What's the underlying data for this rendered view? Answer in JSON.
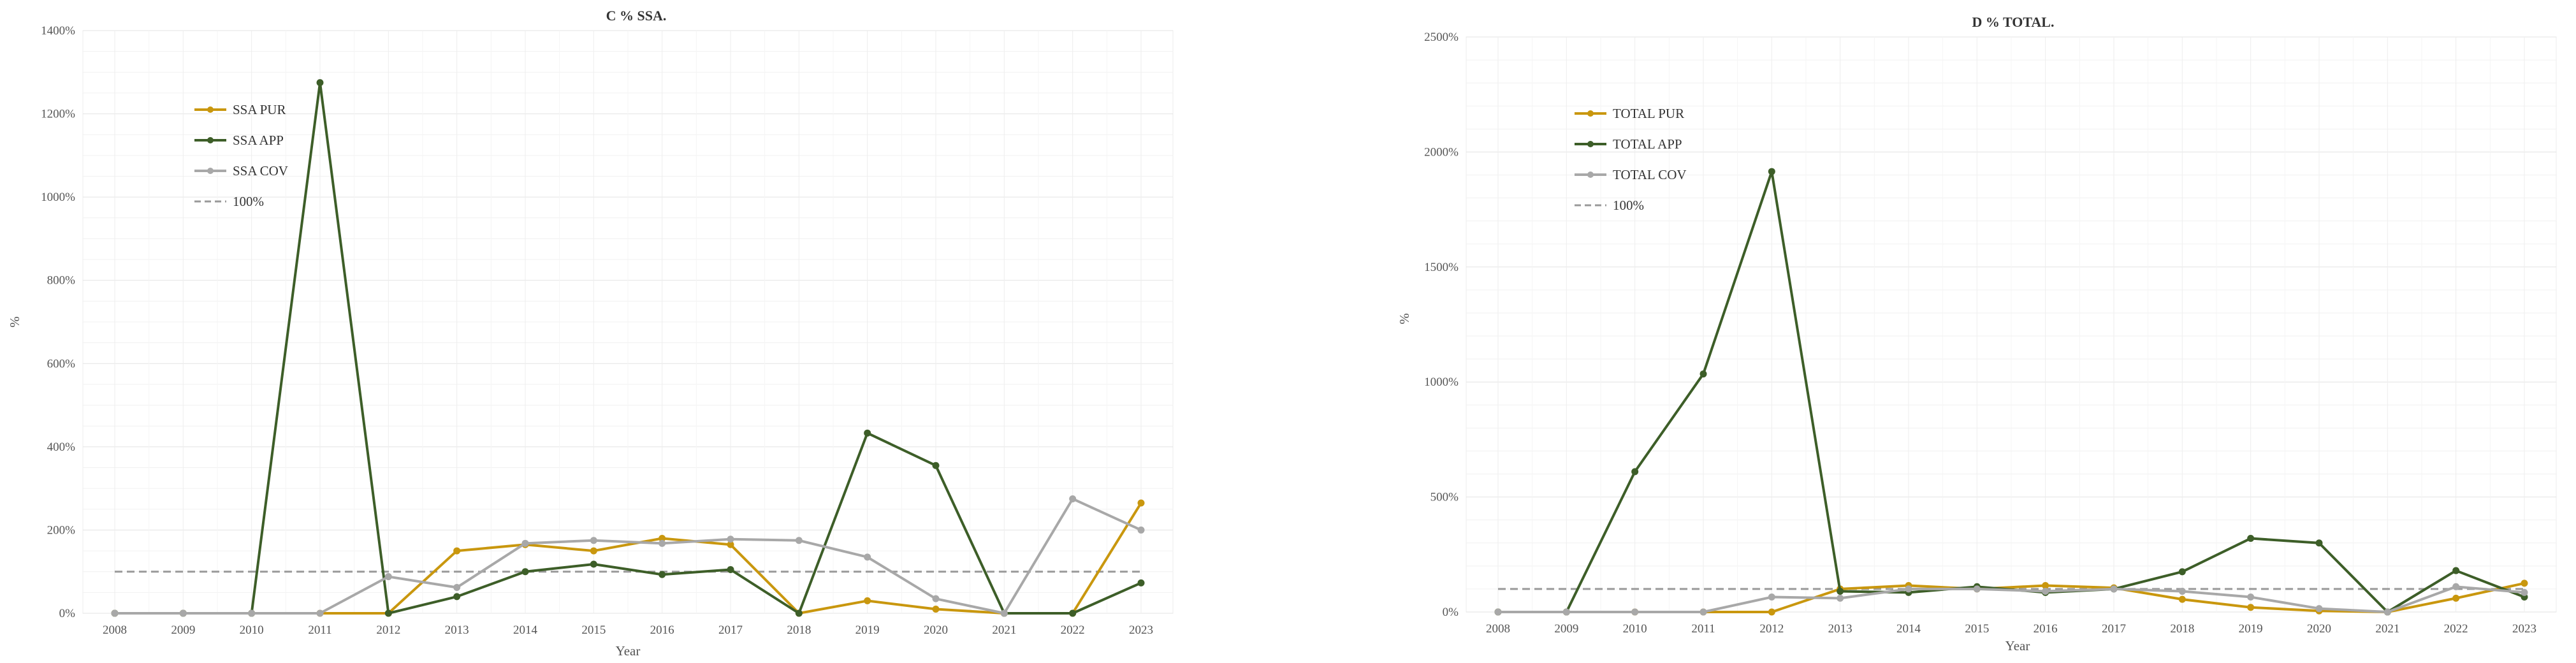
{
  "charts": [
    {
      "chart_data": {
        "type": "line",
        "title": "C % SSA.",
        "xlabel": "Year",
        "ylabel": "%",
        "x": [
          "2008",
          "2009",
          "2010",
          "2011",
          "2012",
          "2013",
          "2014",
          "2015",
          "2016",
          "2017",
          "2018",
          "2019",
          "2020",
          "2021",
          "2022",
          "2023"
        ],
        "ylim": [
          0,
          1400
        ],
        "ytick_step": 200,
        "y_format_suffix": "%",
        "grid": true,
        "legend_position": "top-left",
        "reference_line": {
          "name": "100%",
          "value": 100,
          "style": "dashed",
          "color": "#999999"
        },
        "series": [
          {
            "name": "SSA PUR",
            "color": "#C9970E",
            "values": [
              0,
              0,
              0,
              0,
              0,
              150,
              165,
              150,
              180,
              165,
              0,
              30,
              10,
              0,
              0,
              265
            ]
          },
          {
            "name": "SSA APP",
            "color": "#3D5E28",
            "values": [
              0,
              0,
              0,
              1275,
              0,
              40,
              100,
              118,
              93,
              105,
              0,
              433,
              355,
              0,
              0,
              73
            ]
          },
          {
            "name": "SSA COV",
            "color": "#A8A8A8",
            "values": [
              0,
              0,
              0,
              0,
              88,
              62,
              168,
              175,
              168,
              178,
              175,
              135,
              35,
              0,
              275,
              200
            ]
          }
        ]
      }
    },
    {
      "chart_data": {
        "type": "line",
        "title": "D % TOTAL.",
        "xlabel": "Year",
        "ylabel": "%",
        "x": [
          "2008",
          "2009",
          "2010",
          "2011",
          "2012",
          "2013",
          "2014",
          "2015",
          "2016",
          "2017",
          "2018",
          "2019",
          "2020",
          "2021",
          "2022",
          "2023"
        ],
        "ylim": [
          0,
          2500
        ],
        "ytick_step": 500,
        "y_format_suffix": "%",
        "grid": true,
        "legend_position": "top-left",
        "reference_line": {
          "name": "100%",
          "value": 100,
          "style": "dashed",
          "color": "#999999"
        },
        "series": [
          {
            "name": "TOTAL PUR",
            "color": "#C9970E",
            "values": [
              0,
              0,
              0,
              0,
              0,
              100,
              115,
              100,
              115,
              105,
              55,
              20,
              5,
              0,
              60,
              125
            ]
          },
          {
            "name": "TOTAL APP",
            "color": "#3D5E28",
            "values": [
              0,
              0,
              610,
              1035,
              1915,
              90,
              85,
              110,
              85,
              100,
              175,
              320,
              300,
              0,
              180,
              65
            ]
          },
          {
            "name": "TOTAL COV",
            "color": "#A8A8A8",
            "values": [
              0,
              0,
              0,
              0,
              65,
              60,
              100,
              100,
              90,
              100,
              90,
              65,
              15,
              0,
              110,
              85
            ]
          }
        ]
      }
    }
  ]
}
